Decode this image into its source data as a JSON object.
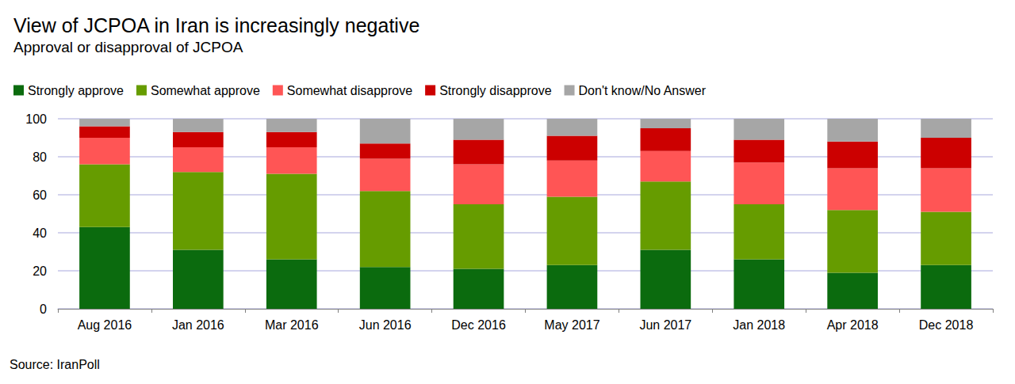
{
  "chart_data": {
    "type": "bar",
    "title": "View of JCPOA in Iran is increasingly negative",
    "subtitle": "Approval or disapproval of JCPOA",
    "source": "Source: IranPoll",
    "categories": [
      "Aug 2016",
      "Jan 2016",
      "Mar 2016",
      "Jun 2016",
      "Dec 2016",
      "May 2017",
      "Jun 2017",
      "Jan 2018",
      "Apr 2018",
      "Dec 2018"
    ],
    "series": [
      {
        "name": "Strongly approve",
        "color": "#0b6b0e",
        "values": [
          43,
          31,
          26,
          22,
          21,
          23,
          31,
          26,
          19,
          23
        ]
      },
      {
        "name": "Somewhat approve",
        "color": "#669c00",
        "values": [
          33,
          41,
          45,
          40,
          34,
          36,
          36,
          29,
          33,
          28
        ]
      },
      {
        "name": "Somewhat disapprove",
        "color": "#ff5555",
        "values": [
          14,
          13,
          14,
          17,
          21,
          19,
          16,
          22,
          22,
          23
        ]
      },
      {
        "name": "Strongly disapprove",
        "color": "#cc0000",
        "values": [
          6,
          8,
          8,
          8,
          13,
          13,
          12,
          12,
          14,
          16
        ]
      },
      {
        "name": "Don't know/No Answer",
        "color": "#a6a6a6",
        "values": [
          4,
          7,
          7,
          13,
          11,
          9,
          5,
          11,
          12,
          10
        ]
      }
    ],
    "ylim": [
      0,
      100
    ],
    "yticks": [
      0,
      20,
      40,
      60,
      80,
      100
    ],
    "stacked": true,
    "grid": true,
    "legend": "top"
  }
}
